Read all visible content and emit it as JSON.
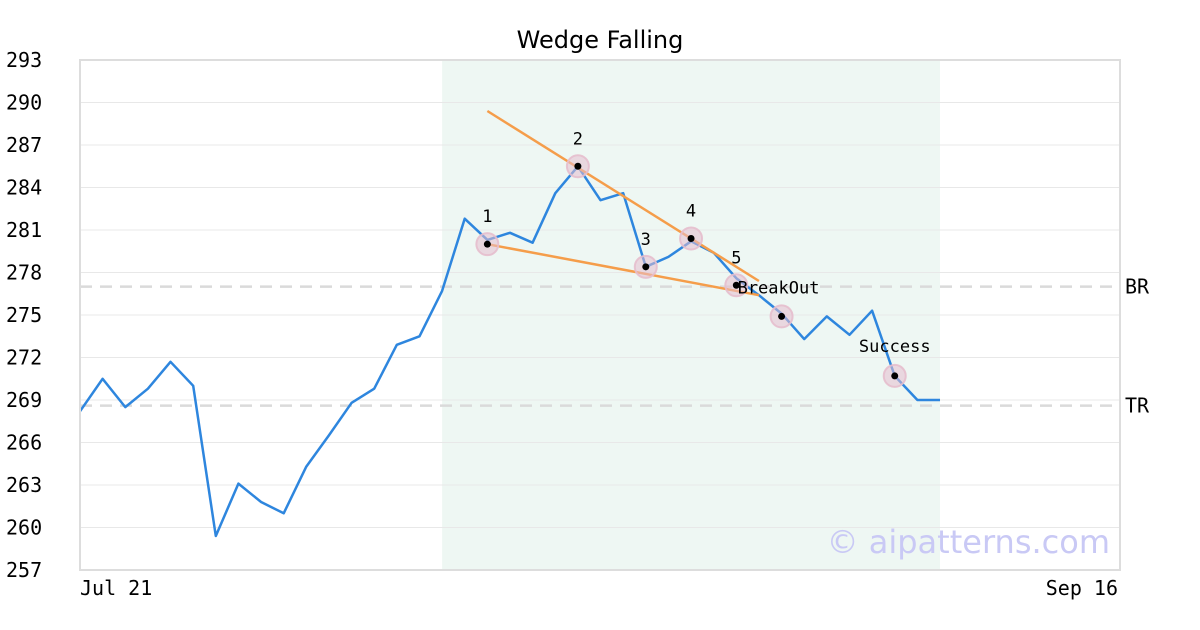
{
  "chart_data": {
    "type": "line",
    "title": "Wedge Falling",
    "xlabel": "",
    "ylabel": "",
    "ylim": [
      257,
      293
    ],
    "yticks": [
      257,
      260,
      263,
      266,
      269,
      272,
      275,
      278,
      281,
      284,
      287,
      290,
      293
    ],
    "x_tick_labels": [
      "Jul 21",
      "Sep 16"
    ],
    "grid": true,
    "series": [
      {
        "color": "#2e86de",
        "values": [
          268.2,
          270.5,
          268.5,
          269.8,
          271.7,
          270.0,
          259.4,
          263.1,
          261.8,
          261.0,
          264.3,
          266.5,
          268.8,
          269.8,
          272.9,
          273.5,
          276.7,
          281.8,
          280.3,
          280.8,
          280.1,
          283.6,
          285.5,
          283.1,
          283.6,
          278.4,
          279.1,
          280.2,
          279.4,
          277.6,
          276.4,
          275.1,
          273.3,
          274.9,
          273.6,
          275.3,
          270.7,
          269.0,
          269.0
        ]
      }
    ],
    "shaded_region": {
      "from_index": 16,
      "to_index": 38,
      "color": "#eef7f3"
    },
    "reference_lines": [
      {
        "label": "BR",
        "y": 277.0
      },
      {
        "label": "TR",
        "y": 268.6
      }
    ],
    "trendlines": [
      {
        "color": "#f59d4a",
        "points": [
          [
            18,
            289.4
          ],
          [
            30,
            277.4
          ]
        ]
      },
      {
        "color": "#f59d4a",
        "points": [
          [
            18,
            280.0
          ],
          [
            30,
            276.4
          ]
        ]
      }
    ],
    "pattern_points": [
      {
        "label": "1",
        "x": 18,
        "y": 280.0
      },
      {
        "label": "2",
        "x": 22,
        "y": 285.5
      },
      {
        "label": "3",
        "x": 25,
        "y": 278.4
      },
      {
        "label": "4",
        "x": 27,
        "y": 280.4
      },
      {
        "label": "5",
        "x": 29,
        "y": 277.1
      },
      {
        "label": "BreakOut",
        "x": 31,
        "y": 274.9
      },
      {
        "label": "Success",
        "x": 36,
        "y": 270.7
      }
    ],
    "watermark": "© aipatterns.com"
  }
}
